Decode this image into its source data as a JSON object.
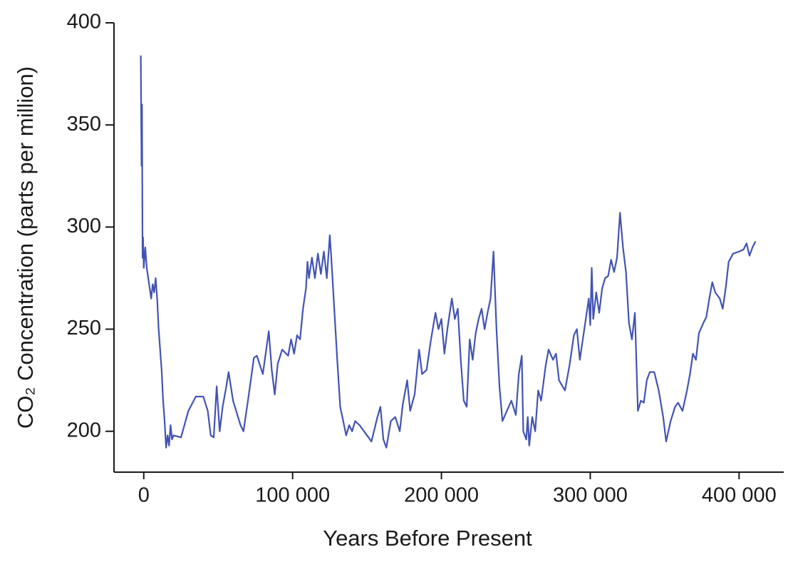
{
  "chart_data": {
    "type": "line",
    "y_label": "CO₂ Concentration (parts per million)",
    "x_label": "Years Before Present",
    "color": "#4353b3",
    "grid": false,
    "xlim": [
      -20000,
      430000
    ],
    "ylim": [
      180,
      400
    ],
    "xticks": [
      0,
      {
        "value": 100000,
        "label": "100 000"
      },
      {
        "value": 200000,
        "label": "200 000"
      },
      {
        "value": 300000,
        "label": "300 000"
      },
      {
        "value": 400000,
        "label": "400 000"
      }
    ],
    "yticks": [
      200,
      250,
      300,
      350,
      400
    ],
    "x": [
      -2000,
      -1500,
      -1200,
      -800,
      -500,
      0,
      1000,
      2000,
      3000,
      4000,
      5000,
      6000,
      7000,
      8000,
      9000,
      10000,
      11000,
      12000,
      13000,
      14000,
      15000,
      16000,
      17000,
      18000,
      19000,
      20000,
      25000,
      30000,
      35000,
      40000,
      43000,
      45000,
      47000,
      49000,
      51000,
      53000,
      55000,
      57000,
      60000,
      65000,
      67000,
      70000,
      74000,
      76000,
      80000,
      84000,
      86000,
      88000,
      90000,
      93000,
      97000,
      99000,
      101000,
      103000,
      105000,
      107000,
      109000,
      110000,
      111000,
      113000,
      115000,
      117000,
      119000,
      121000,
      123000,
      125000,
      126000,
      128000,
      130000,
      132000,
      134000,
      136000,
      138000,
      140000,
      142000,
      145000,
      150000,
      153000,
      157000,
      159000,
      161000,
      163000,
      166000,
      169000,
      172000,
      174000,
      177000,
      179000,
      182000,
      185000,
      187000,
      190000,
      193000,
      196000,
      198000,
      200000,
      202000,
      204000,
      207000,
      209000,
      211000,
      213000,
      215000,
      217000,
      219000,
      221000,
      223000,
      225000,
      227000,
      229000,
      231000,
      233000,
      235000,
      237000,
      239000,
      241000,
      244000,
      247000,
      250000,
      252000,
      254000,
      255000,
      257000,
      258000,
      259000,
      261000,
      263000,
      265000,
      267000,
      270000,
      272000,
      275000,
      277000,
      279000,
      283000,
      286000,
      289000,
      291000,
      293000,
      295000,
      297000,
      299000,
      300000,
      301000,
      302000,
      304000,
      306000,
      308000,
      310000,
      312000,
      314000,
      316000,
      318000,
      320000,
      322000,
      324000,
      326000,
      328000,
      330000,
      332000,
      334000,
      336000,
      338000,
      340000,
      343000,
      346000,
      349000,
      351000,
      354000,
      357000,
      359000,
      362000,
      365000,
      367000,
      369000,
      371000,
      373000,
      376000,
      378000,
      380000,
      382000,
      384000,
      387000,
      389000,
      391000,
      393000,
      396000,
      400000,
      403000,
      405000,
      407000,
      409000,
      411000
    ],
    "values": [
      384,
      330,
      360,
      285,
      295,
      280,
      290,
      280,
      275,
      270,
      265,
      272,
      268,
      275,
      265,
      250,
      240,
      230,
      215,
      205,
      192,
      198,
      193,
      203,
      196,
      198,
      197,
      210,
      217,
      217,
      210,
      198,
      197,
      222,
      200,
      212,
      220,
      229,
      215,
      203,
      200,
      215,
      236,
      237,
      228,
      249,
      230,
      218,
      233,
      240,
      237,
      245,
      238,
      247,
      245,
      260,
      270,
      283,
      275,
      285,
      275,
      287,
      277,
      288,
      275,
      296,
      285,
      260,
      235,
      212,
      205,
      198,
      203,
      200,
      205,
      203,
      198,
      195,
      207,
      212,
      196,
      192,
      205,
      207,
      200,
      213,
      225,
      210,
      218,
      240,
      228,
      230,
      245,
      258,
      250,
      255,
      238,
      250,
      265,
      255,
      260,
      235,
      215,
      212,
      245,
      235,
      248,
      255,
      260,
      250,
      258,
      265,
      288,
      250,
      222,
      205,
      210,
      215,
      208,
      228,
      237,
      200,
      196,
      207,
      193,
      207,
      200,
      220,
      215,
      232,
      240,
      235,
      238,
      225,
      220,
      232,
      247,
      250,
      235,
      245,
      255,
      265,
      252,
      280,
      255,
      268,
      258,
      270,
      275,
      276,
      284,
      278,
      285,
      307,
      290,
      278,
      253,
      245,
      258,
      210,
      215,
      214,
      225,
      229,
      229,
      220,
      207,
      195,
      205,
      212,
      214,
      210,
      220,
      228,
      238,
      235,
      248,
      253,
      256,
      265,
      273,
      268,
      265,
      260,
      270,
      283,
      287,
      288,
      289,
      292,
      286,
      290,
      293
    ]
  }
}
